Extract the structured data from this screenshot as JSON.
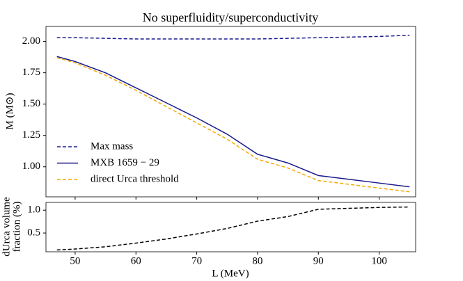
{
  "chart_data": [
    {
      "type": "line",
      "title": "No superfluidity/superconductivity",
      "ylabel": "M (M⊙)",
      "x": [
        47,
        50,
        55,
        60,
        65,
        70,
        75,
        80,
        85,
        90,
        95,
        100,
        105
      ],
      "xlim": [
        45.2,
        106.0
      ],
      "ylim": [
        0.76,
        2.12
      ],
      "yticks": [
        {
          "value": 1.0,
          "label": "1.00"
        },
        1.25,
        {
          "value": 1.5,
          "label": "1.50"
        },
        1.75,
        {
          "value": 2.0,
          "label": "2.00"
        }
      ],
      "legend": "lower left",
      "series": [
        {
          "name": "Max mass",
          "color": "#1a1a8c",
          "dashed": true,
          "values": [
            2.03,
            2.03,
            2.025,
            2.02,
            2.02,
            2.02,
            2.02,
            2.02,
            2.025,
            2.03,
            2.035,
            2.04,
            2.05
          ]
        },
        {
          "name": "MXB 1659 − 29",
          "color": "#1a1a8c",
          "dashed": false,
          "values": [
            1.88,
            1.84,
            1.75,
            1.63,
            1.51,
            1.39,
            1.26,
            1.1,
            1.03,
            0.93,
            0.9,
            0.87,
            0.84
          ]
        },
        {
          "name": "direct Urca threshold",
          "color": "#f5a800",
          "dashed": true,
          "values": [
            1.87,
            1.83,
            1.73,
            1.61,
            1.48,
            1.35,
            1.22,
            1.06,
            0.99,
            0.89,
            0.86,
            0.83,
            0.8
          ]
        }
      ]
    },
    {
      "type": "line",
      "xlabel": "L (MeV)",
      "ylabel": [
        "dUrca volume",
        "fraction (%)"
      ],
      "x": [
        47,
        50,
        55,
        60,
        65,
        70,
        75,
        80,
        85,
        90,
        95,
        100,
        105
      ],
      "xlim": [
        45.2,
        106.0
      ],
      "ylim": [
        0.09,
        1.17
      ],
      "xticks": [
        50,
        60,
        70,
        80,
        90,
        100
      ],
      "yticks": [
        0.5,
        {
          "value": 1.0,
          "label": "1.0"
        }
      ],
      "series": [
        {
          "color": "#000000",
          "dashed": true,
          "values": [
            0.13,
            0.15,
            0.2,
            0.28,
            0.37,
            0.48,
            0.6,
            0.76,
            0.86,
            1.02,
            1.04,
            1.06,
            1.07
          ]
        }
      ]
    }
  ]
}
